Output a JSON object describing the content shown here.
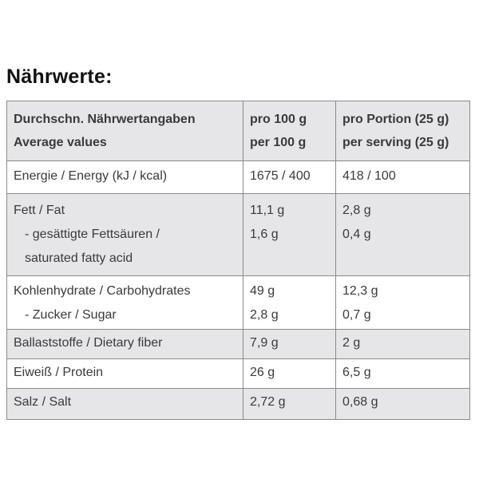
{
  "title": "Nährwerte:",
  "header": {
    "col1": [
      "Durchschn. Nährwertangaben",
      "Average values"
    ],
    "col2": [
      "pro 100 g",
      "per 100 g"
    ],
    "col3": [
      "pro Portion (25 g)",
      "per serving (25 g)"
    ]
  },
  "rows": {
    "energy": {
      "label": [
        "Energie / Energy (kJ / kcal)"
      ],
      "per100": [
        "1675 / 400"
      ],
      "portion": [
        "418 / 100"
      ]
    },
    "fat": {
      "label": [
        "Fett / Fat",
        "- gesättigte Fettsäuren /",
        "saturated fatty acid"
      ],
      "per100": [
        "11,1 g",
        "1,6 g"
      ],
      "portion": [
        "2,8 g",
        "0,4 g"
      ]
    },
    "carbs": {
      "label": [
        "Kohlenhydrate / Carbohydrates",
        "- Zucker / Sugar"
      ],
      "per100": [
        "49 g",
        "2,8 g"
      ],
      "portion": [
        "12,3 g",
        "0,7 g"
      ]
    },
    "fiber": {
      "label": [
        "Ballaststoffe / Dietary fiber"
      ],
      "per100": [
        "7,9 g"
      ],
      "portion": [
        "2 g"
      ]
    },
    "protein": {
      "label": [
        "Eiweiß / Protein"
      ],
      "per100": [
        "26 g"
      ],
      "portion": [
        "6,5 g"
      ]
    },
    "salt": {
      "label": [
        "Salz / Salt"
      ],
      "per100": [
        "2,72 g"
      ],
      "portion": [
        "0,68 g"
      ]
    }
  }
}
